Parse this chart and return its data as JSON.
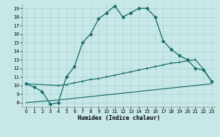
{
  "xlabel": "Humidex (Indice chaleur)",
  "background_color": "#c8e8e8",
  "grid_color": "#a8d0d0",
  "line_color": "#1a6b6b",
  "xlim": [
    -0.5,
    23.5
  ],
  "ylim": [
    7.5,
    19.5
  ],
  "curve_main_x": [
    0,
    1,
    2,
    3,
    4,
    5,
    6,
    7,
    8,
    9,
    10,
    11,
    12,
    13,
    14,
    15,
    16,
    17,
    18,
    19,
    20,
    21,
    22,
    23
  ],
  "curve_main_y": [
    10.2,
    9.8,
    9.3,
    7.8,
    8.0,
    11.0,
    12.2,
    15.0,
    16.0,
    17.8,
    18.5,
    19.3,
    18.0,
    18.5,
    19.0,
    19.0,
    18.0,
    15.2,
    14.2,
    13.5,
    13.0,
    12.0,
    11.8,
    10.5
  ],
  "curve_upper_x": [
    0,
    4,
    5,
    6,
    7,
    8,
    9,
    10,
    11,
    12,
    13,
    14,
    15,
    16,
    17,
    18,
    19,
    20,
    21,
    22,
    23
  ],
  "curve_upper_y": [
    10.2,
    10.0,
    10.1,
    10.3,
    10.5,
    10.7,
    10.8,
    11.0,
    11.2,
    11.4,
    11.6,
    11.8,
    12.0,
    12.2,
    12.4,
    12.6,
    12.7,
    12.9,
    13.0,
    11.9,
    10.5
  ],
  "curve_lower_x": [
    0,
    4,
    5,
    6,
    7,
    8,
    9,
    10,
    11,
    12,
    13,
    14,
    15,
    16,
    17,
    18,
    19,
    20,
    21,
    22,
    23
  ],
  "curve_lower_y": [
    8.0,
    8.3,
    8.4,
    8.5,
    8.6,
    8.7,
    8.8,
    8.9,
    9.0,
    9.1,
    9.2,
    9.3,
    9.4,
    9.5,
    9.6,
    9.7,
    9.8,
    9.9,
    10.0,
    10.1,
    10.2
  ]
}
